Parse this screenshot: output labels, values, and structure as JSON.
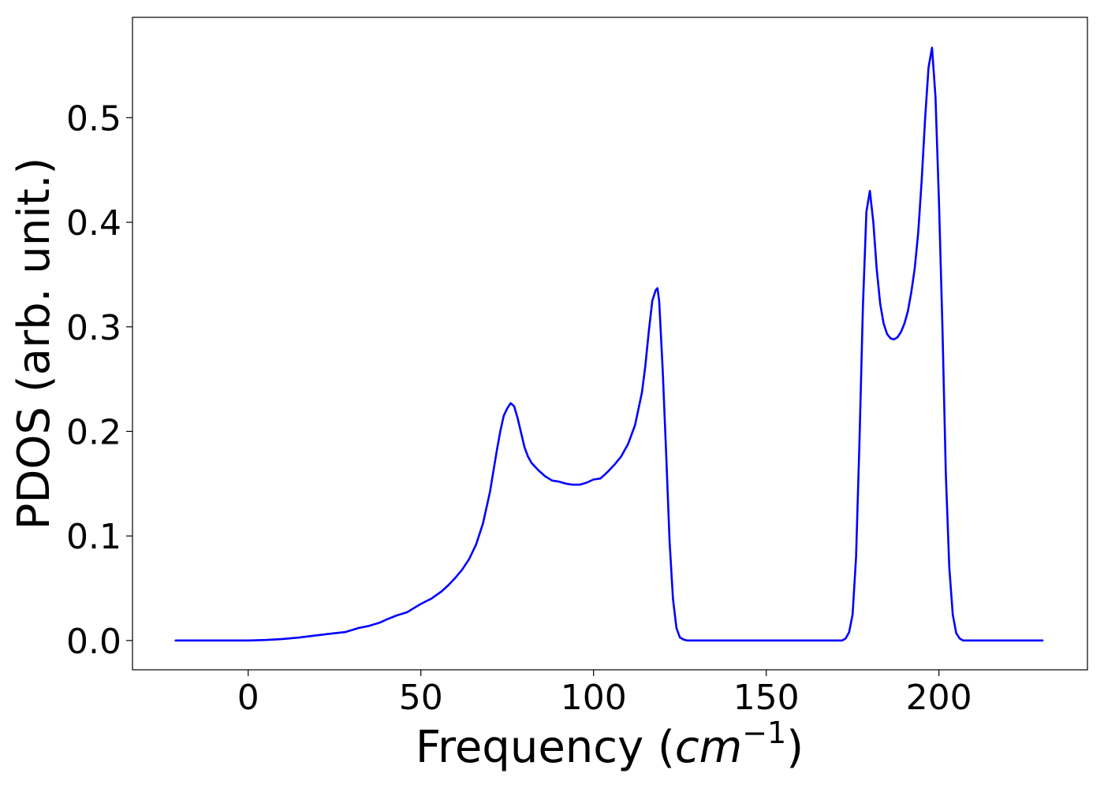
{
  "chart_data": {
    "type": "line",
    "xlabel": "Frequency (",
    "xlabel_math": "cm",
    "xlabel_sup": "−1",
    "xlabel_close": ")",
    "ylabel": "PDOS (arb. unit.)",
    "xlim": [
      -33.5,
      243
    ],
    "ylim": [
      -0.028,
      0.596
    ],
    "xticks": [
      0,
      50,
      100,
      150,
      200
    ],
    "xtick_labels": [
      "0",
      "50",
      "100",
      "150",
      "200"
    ],
    "yticks": [
      0.0,
      0.1,
      0.2,
      0.3,
      0.4,
      0.5
    ],
    "ytick_labels": [
      "0.0",
      "0.1",
      "0.2",
      "0.3",
      "0.4",
      "0.5"
    ],
    "grid": false,
    "line_color": "#0000ff",
    "series": [
      {
        "x": [
          -21,
          -10,
          0,
          5,
          10,
          15,
          20,
          25,
          28,
          30,
          32,
          35,
          38,
          40,
          43,
          46,
          48,
          50,
          53,
          56,
          58,
          60,
          62,
          64,
          66,
          68,
          70,
          72,
          73,
          74,
          75,
          76,
          77,
          78,
          79,
          80,
          81,
          82,
          84,
          86,
          88,
          90,
          92,
          94,
          96,
          98,
          100,
          102,
          104,
          106,
          108,
          110,
          112,
          114,
          115,
          116,
          117,
          118,
          118.5,
          119,
          120,
          121,
          122,
          123,
          124,
          125,
          126,
          127,
          128,
          130,
          140,
          150,
          160,
          170,
          172,
          173,
          174,
          175,
          176,
          177,
          178,
          179,
          180,
          181,
          182,
          183,
          184,
          185,
          186,
          187,
          188,
          189,
          190,
          191,
          192,
          193,
          194,
          195,
          196,
          197,
          198,
          199,
          200,
          201,
          202,
          203,
          204,
          205,
          206,
          207,
          208,
          209,
          210,
          211,
          212,
          213,
          214,
          215,
          216,
          218,
          220,
          225,
          230
        ],
        "y": [
          0.0,
          0.0,
          0.0,
          0.0005,
          0.0015,
          0.003,
          0.005,
          0.007,
          0.008,
          0.01,
          0.012,
          0.014,
          0.017,
          0.02,
          0.024,
          0.027,
          0.031,
          0.035,
          0.04,
          0.047,
          0.053,
          0.06,
          0.068,
          0.078,
          0.092,
          0.112,
          0.142,
          0.182,
          0.2,
          0.215,
          0.222,
          0.227,
          0.224,
          0.213,
          0.199,
          0.185,
          0.176,
          0.17,
          0.163,
          0.157,
          0.153,
          0.152,
          0.15,
          0.149,
          0.149,
          0.151,
          0.154,
          0.155,
          0.161,
          0.168,
          0.176,
          0.188,
          0.206,
          0.237,
          0.263,
          0.296,
          0.325,
          0.335,
          0.337,
          0.325,
          0.26,
          0.18,
          0.095,
          0.04,
          0.012,
          0.003,
          0.001,
          0.0,
          0.0,
          0.0,
          0.0,
          0.0,
          0.0,
          0.0,
          0.0,
          0.002,
          0.008,
          0.025,
          0.08,
          0.19,
          0.32,
          0.41,
          0.43,
          0.4,
          0.355,
          0.322,
          0.303,
          0.293,
          0.289,
          0.288,
          0.29,
          0.295,
          0.303,
          0.315,
          0.333,
          0.356,
          0.39,
          0.44,
          0.5,
          0.548,
          0.567,
          0.52,
          0.42,
          0.3,
          0.16,
          0.07,
          0.025,
          0.007,
          0.002,
          0.0,
          0.0,
          0.0,
          0.0,
          0.0,
          0.0,
          0.0,
          0.0,
          0.0,
          0.0,
          0.0,
          0.0,
          0.0,
          0.0
        ]
      }
    ]
  }
}
